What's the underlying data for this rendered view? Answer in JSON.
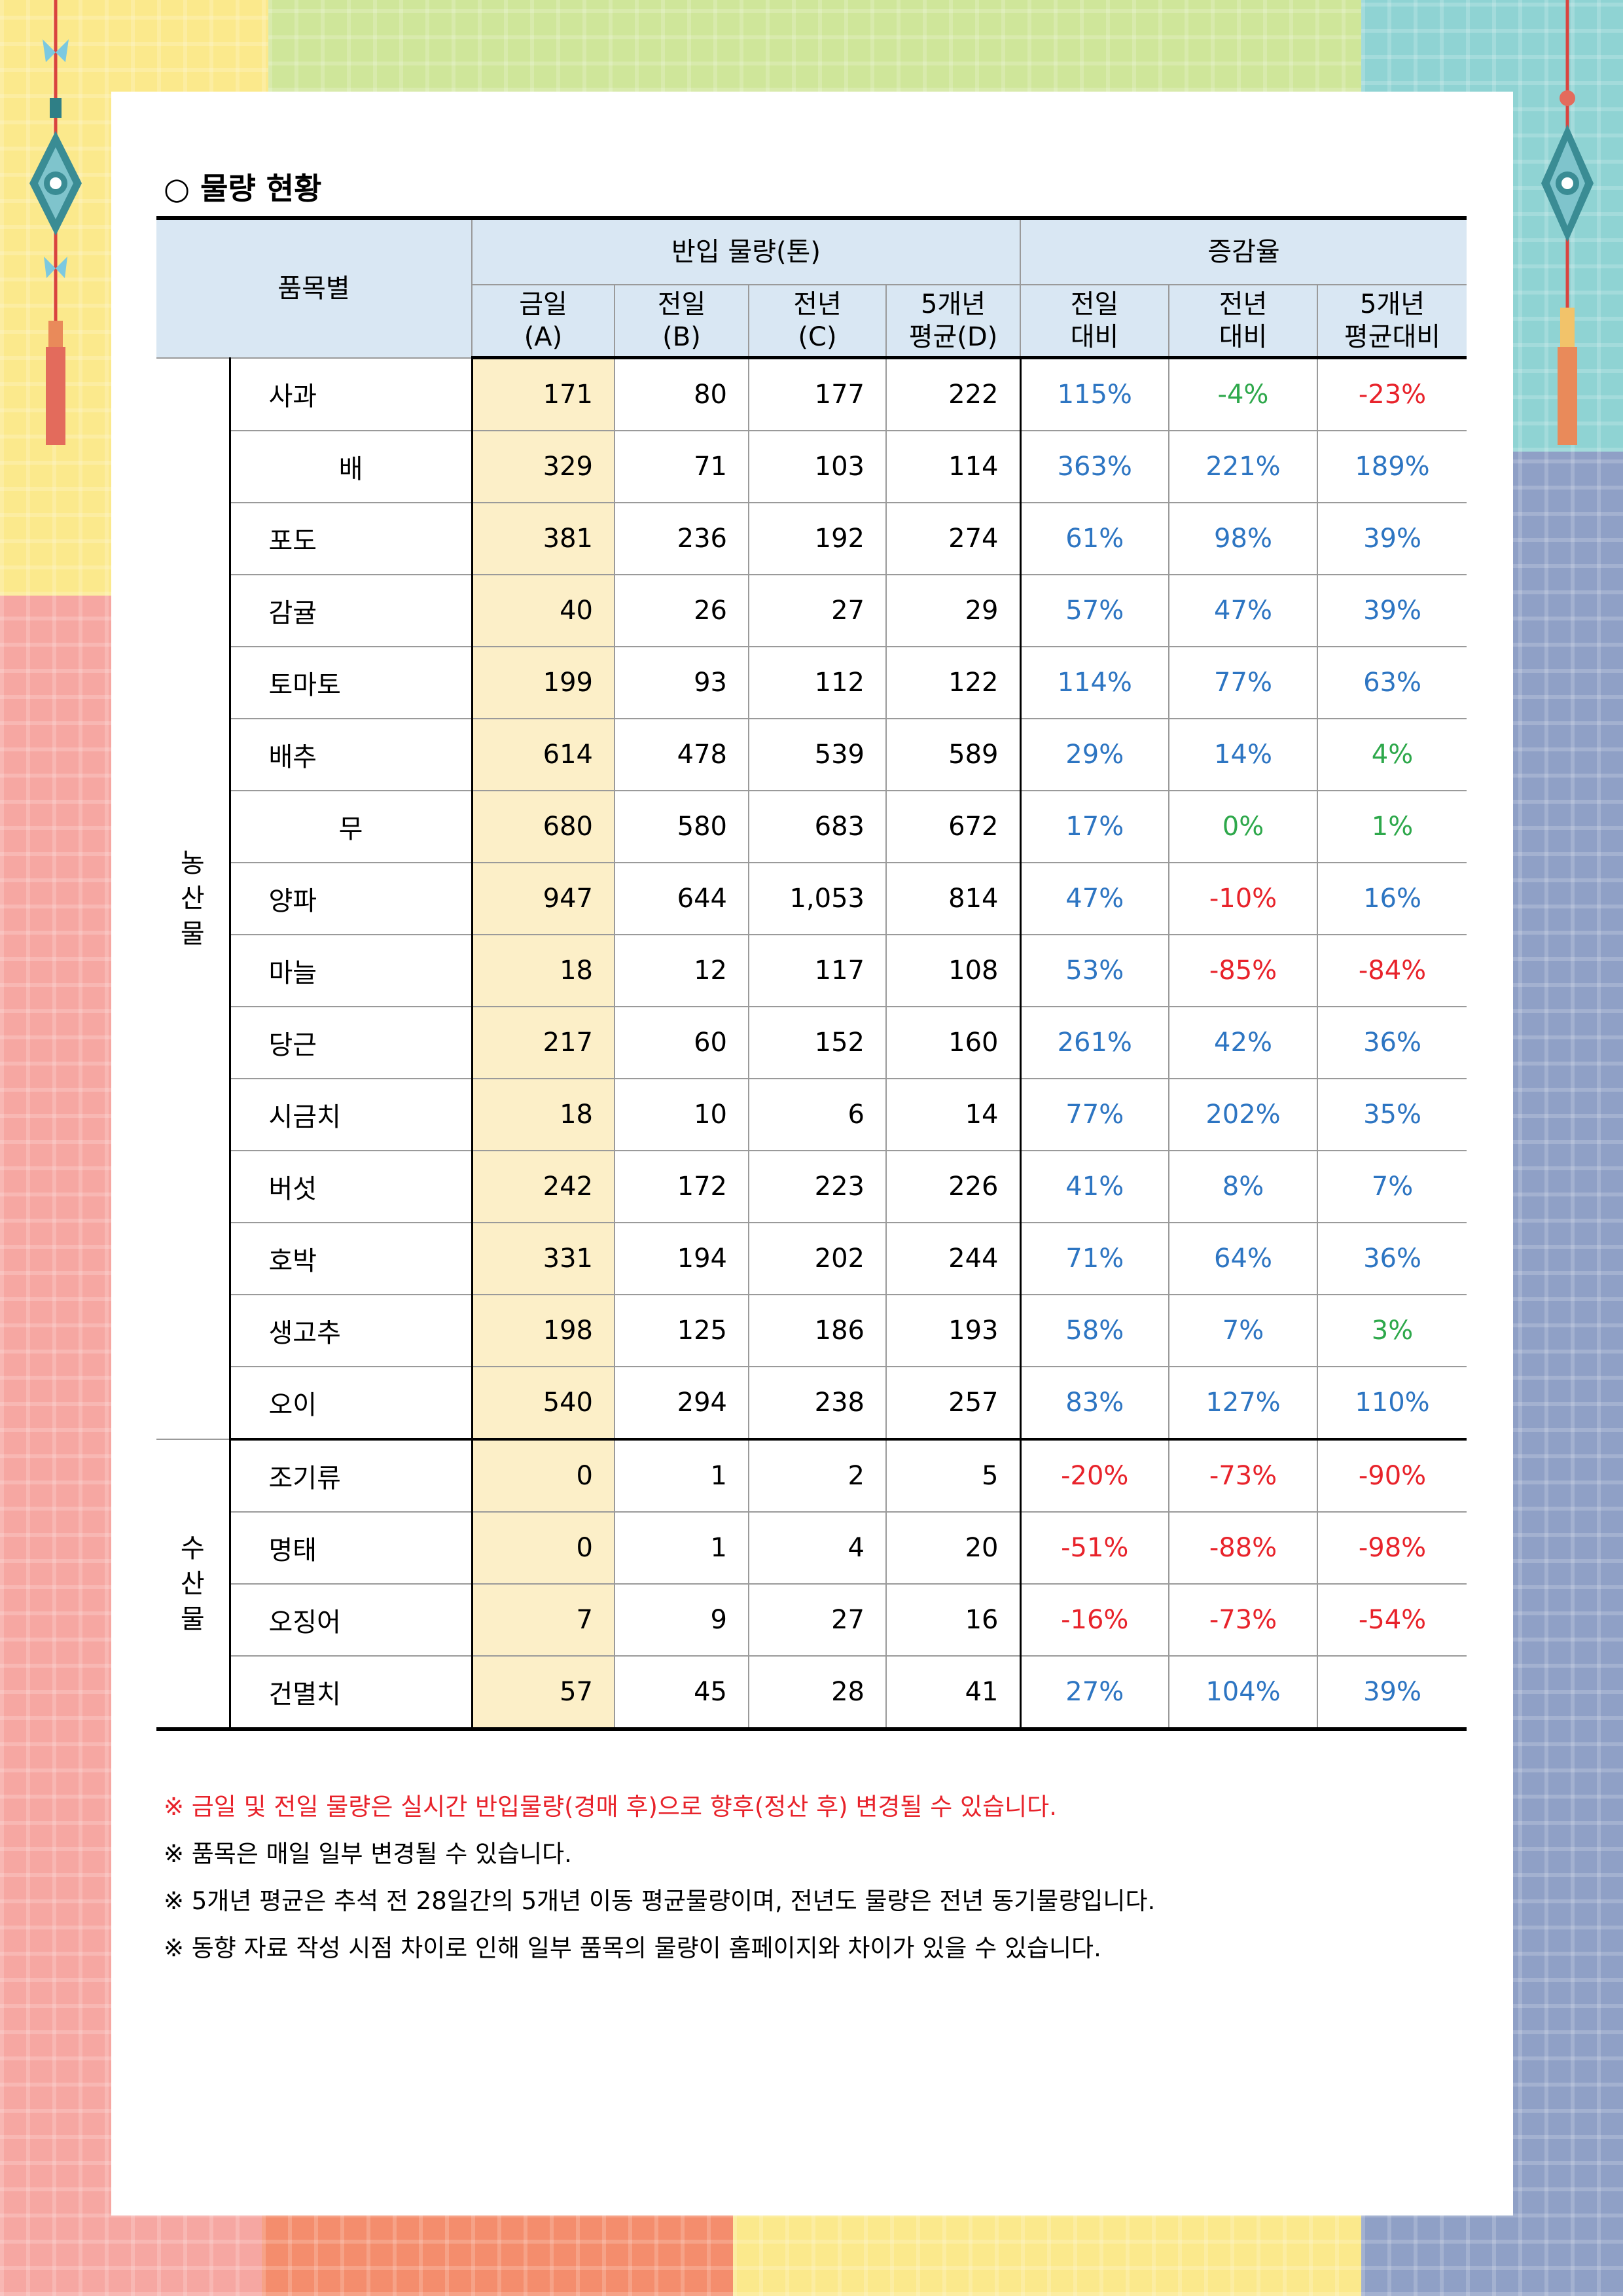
{
  "title": "○ 물량 현황",
  "header": {
    "item": "품목별",
    "volume_group": "반입 물량(톤)",
    "rate_group": "증감율",
    "cols": [
      {
        "l1": "금일",
        "l2": "(A)"
      },
      {
        "l1": "전일",
        "l2": "(B)"
      },
      {
        "l1": "전년",
        "l2": "(C)"
      },
      {
        "l1": "5개년",
        "l2": "평균(D)"
      },
      {
        "l1": "전일",
        "l2": "대비"
      },
      {
        "l1": "전년",
        "l2": "대비"
      },
      {
        "l1": "5개년",
        "l2": "평균대비"
      }
    ]
  },
  "categories": {
    "agri": "농산물",
    "fish": "수산물"
  },
  "rows": [
    {
      "name": "사과",
      "a": "171",
      "b": "80",
      "c": "177",
      "d": "222",
      "r1": "115%",
      "r1c": "#2d75c2",
      "r2": "-4%",
      "r2c": "#2ea84b",
      "r3": "-23%",
      "r3c": "#e8232b"
    },
    {
      "name": "배",
      "a": "329",
      "b": "71",
      "c": "103",
      "d": "114",
      "r1": "363%",
      "r1c": "#2d75c2",
      "r2": "221%",
      "r2c": "#2d75c2",
      "r3": "189%",
      "r3c": "#2d75c2"
    },
    {
      "name": "포도",
      "a": "381",
      "b": "236",
      "c": "192",
      "d": "274",
      "r1": "61%",
      "r1c": "#2d75c2",
      "r2": "98%",
      "r2c": "#2d75c2",
      "r3": "39%",
      "r3c": "#2d75c2"
    },
    {
      "name": "감귤",
      "a": "40",
      "b": "26",
      "c": "27",
      "d": "29",
      "r1": "57%",
      "r1c": "#2d75c2",
      "r2": "47%",
      "r2c": "#2d75c2",
      "r3": "39%",
      "r3c": "#2d75c2"
    },
    {
      "name": "토마토",
      "a": "199",
      "b": "93",
      "c": "112",
      "d": "122",
      "r1": "114%",
      "r1c": "#2d75c2",
      "r2": "77%",
      "r2c": "#2d75c2",
      "r3": "63%",
      "r3c": "#2d75c2"
    },
    {
      "name": "배추",
      "a": "614",
      "b": "478",
      "c": "539",
      "d": "589",
      "r1": "29%",
      "r1c": "#2d75c2",
      "r2": "14%",
      "r2c": "#2d75c2",
      "r3": "4%",
      "r3c": "#2ea84b"
    },
    {
      "name": "무",
      "a": "680",
      "b": "580",
      "c": "683",
      "d": "672",
      "r1": "17%",
      "r1c": "#2d75c2",
      "r2": "0%",
      "r2c": "#2ea84b",
      "r3": "1%",
      "r3c": "#2ea84b"
    },
    {
      "name": "양파",
      "a": "947",
      "b": "644",
      "c": "1,053",
      "d": "814",
      "r1": "47%",
      "r1c": "#2d75c2",
      "r2": "-10%",
      "r2c": "#e8232b",
      "r3": "16%",
      "r3c": "#2d75c2"
    },
    {
      "name": "마늘",
      "a": "18",
      "b": "12",
      "c": "117",
      "d": "108",
      "r1": "53%",
      "r1c": "#2d75c2",
      "r2": "-85%",
      "r2c": "#e8232b",
      "r3": "-84%",
      "r3c": "#e8232b"
    },
    {
      "name": "당근",
      "a": "217",
      "b": "60",
      "c": "152",
      "d": "160",
      "r1": "261%",
      "r1c": "#2d75c2",
      "r2": "42%",
      "r2c": "#2d75c2",
      "r3": "36%",
      "r3c": "#2d75c2"
    },
    {
      "name": "시금치",
      "a": "18",
      "b": "10",
      "c": "6",
      "d": "14",
      "r1": "77%",
      "r1c": "#2d75c2",
      "r2": "202%",
      "r2c": "#2d75c2",
      "r3": "35%",
      "r3c": "#2d75c2"
    },
    {
      "name": "버섯",
      "a": "242",
      "b": "172",
      "c": "223",
      "d": "226",
      "r1": "41%",
      "r1c": "#2d75c2",
      "r2": "8%",
      "r2c": "#2d75c2",
      "r3": "7%",
      "r3c": "#2d75c2"
    },
    {
      "name": "호박",
      "a": "331",
      "b": "194",
      "c": "202",
      "d": "244",
      "r1": "71%",
      "r1c": "#2d75c2",
      "r2": "64%",
      "r2c": "#2d75c2",
      "r3": "36%",
      "r3c": "#2d75c2"
    },
    {
      "name": "생고추",
      "a": "198",
      "b": "125",
      "c": "186",
      "d": "193",
      "r1": "58%",
      "r1c": "#2d75c2",
      "r2": "7%",
      "r2c": "#2d75c2",
      "r3": "3%",
      "r3c": "#2ea84b"
    },
    {
      "name": "오이",
      "a": "540",
      "b": "294",
      "c": "238",
      "d": "257",
      "r1": "83%",
      "r1c": "#2d75c2",
      "r2": "127%",
      "r2c": "#2d75c2",
      "r3": "110%",
      "r3c": "#2d75c2"
    },
    {
      "name": "조기류",
      "a": "0",
      "b": "1",
      "c": "2",
      "d": "5",
      "r1": "-20%",
      "r1c": "#e8232b",
      "r2": "-73%",
      "r2c": "#e8232b",
      "r3": "-90%",
      "r3c": "#e8232b"
    },
    {
      "name": "명태",
      "a": "0",
      "b": "1",
      "c": "4",
      "d": "20",
      "r1": "-51%",
      "r1c": "#e8232b",
      "r2": "-88%",
      "r2c": "#e8232b",
      "r3": "-98%",
      "r3c": "#e8232b"
    },
    {
      "name": "오징어",
      "a": "7",
      "b": "9",
      "c": "27",
      "d": "16",
      "r1": "-16%",
      "r1c": "#e8232b",
      "r2": "-73%",
      "r2c": "#e8232b",
      "r3": "-54%",
      "r3c": "#e8232b"
    },
    {
      "name": "건멸치",
      "a": "57",
      "b": "45",
      "c": "28",
      "d": "41",
      "r1": "27%",
      "r1c": "#2d75c2",
      "r2": "104%",
      "r2c": "#2d75c2",
      "r3": "39%",
      "r3c": "#2d75c2"
    }
  ],
  "notes": [
    "※ 금일 및 전일 물량은 실시간 반입물량(경매 후)으로 향후(정산 후) 변경될 수 있습니다.",
    "※ 품목은 매일 일부 변경될 수 있습니다.",
    "※ 5개년 평균은 추석 전 28일간의 5개년 이동 평균물량이며, 전년도 물량은 전년 동기물량입니다.",
    "※ 동향 자료 작성 시점 차이로 인해 일부 품목의 물량이 홈페이지와 차이가 있을 수 있습니다."
  ],
  "colors": {
    "accent_blue": "#2d75c2",
    "negative_red": "#e8232b",
    "neutral_green": "#2ea84b",
    "header_bg": "#d9e7f3",
    "today_bg": "#fcefc8"
  }
}
